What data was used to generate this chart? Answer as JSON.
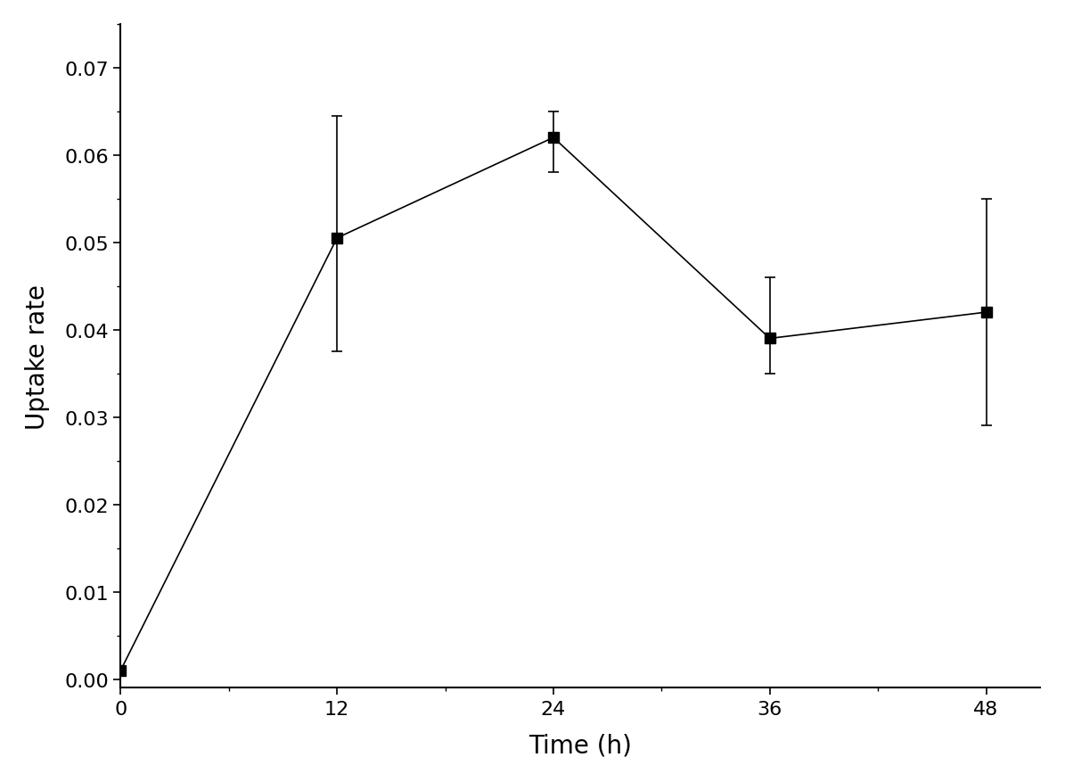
{
  "x": [
    0,
    12,
    24,
    36,
    48
  ],
  "y": [
    0.001,
    0.0505,
    0.062,
    0.039,
    0.042
  ],
  "yerr_lower": [
    0.0,
    0.013,
    0.004,
    0.004,
    0.013
  ],
  "yerr_upper": [
    0.0,
    0.014,
    0.003,
    0.007,
    0.013
  ],
  "xlabel": "Time (h)",
  "ylabel": "Uptake rate",
  "xlim": [
    0,
    51
  ],
  "ylim": [
    -0.001,
    0.075
  ],
  "xticks": [
    0,
    12,
    24,
    36,
    48
  ],
  "yticks": [
    0.0,
    0.01,
    0.02,
    0.03,
    0.04,
    0.05,
    0.06,
    0.07
  ],
  "line_color": "#000000",
  "marker_color": "#000000",
  "marker": "s",
  "marker_size": 8,
  "line_width": 1.2,
  "xlabel_fontsize": 20,
  "ylabel_fontsize": 20,
  "tick_fontsize": 16,
  "capsize": 4,
  "elinewidth": 1.2,
  "background_color": "#ffffff"
}
